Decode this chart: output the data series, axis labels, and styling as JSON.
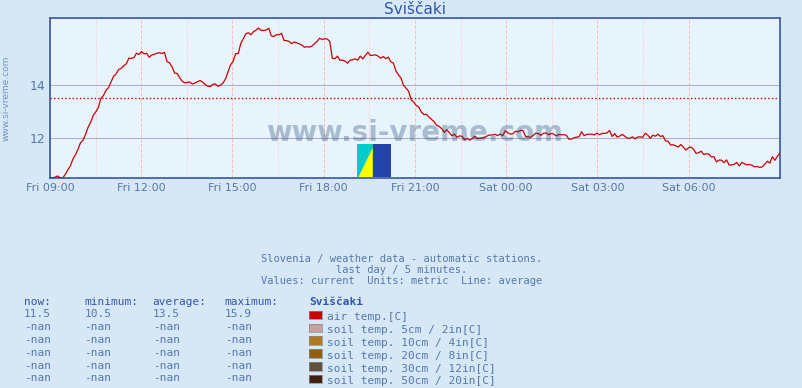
{
  "title": "Sviščaki",
  "background_color": "#d6e8f5",
  "plot_bg_color": "#e8f4fc",
  "line_color": "#cc0000",
  "average_value": 13.5,
  "y_min": 10.5,
  "y_max": 16.5,
  "yticks": [
    12,
    14
  ],
  "title_color": "#3355aa",
  "subtitle_lines": [
    "Slovenia / weather data - automatic stations.",
    "last day / 5 minutes.",
    "Values: current  Units: metric  Line: average"
  ],
  "subtitle_color": "#5577aa",
  "watermark": "www.si-vreme.com",
  "watermark_color": "#1a3a6a",
  "xtick_labels": [
    "Fri 09:00",
    "Fri 12:00",
    "Fri 15:00",
    "Fri 18:00",
    "Fri 21:00",
    "Sat 00:00",
    "Sat 03:00",
    "Sat 06:00"
  ],
  "xtick_positions_norm": [
    0.0,
    0.125,
    0.25,
    0.375,
    0.5,
    0.625,
    0.75,
    0.875
  ],
  "legend_items": [
    {
      "label": "air temp.[C]",
      "color": "#cc0000"
    },
    {
      "label": "soil temp. 5cm / 2in[C]",
      "color": "#c8a0a0"
    },
    {
      "label": "soil temp. 10cm / 4in[C]",
      "color": "#b07820"
    },
    {
      "label": "soil temp. 20cm / 8in[C]",
      "color": "#906010"
    },
    {
      "label": "soil temp. 30cm / 12in[C]",
      "color": "#605040"
    },
    {
      "label": "soil temp. 50cm / 20in[C]",
      "color": "#402010"
    }
  ],
  "table_row1": [
    "11.5",
    "10.5",
    "13.5",
    "15.9"
  ],
  "n_other_rows": 5,
  "sidebar_text": "www.si-vreme.com",
  "sidebar_color": "#5577aa"
}
